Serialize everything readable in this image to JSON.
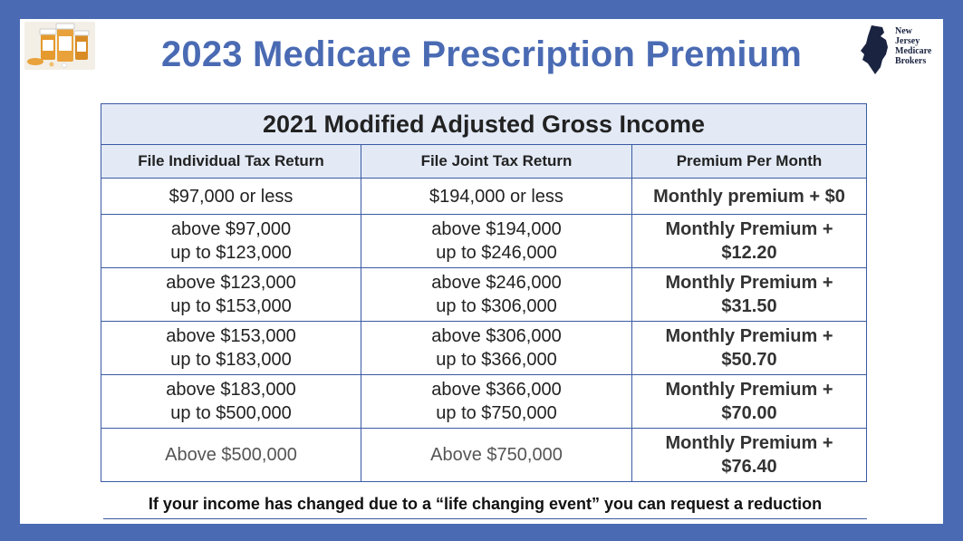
{
  "title": "2023 Medicare Prescription Premium",
  "logo": {
    "lines": [
      "New",
      "Jersey",
      "Medicare",
      "Brokers"
    ],
    "state_color": "#1a2340"
  },
  "photo": {
    "icon": "pill-bottles-image"
  },
  "table": {
    "heading": "2021 Modified Adjusted Gross Income",
    "columns": [
      "File Individual Tax Return",
      "File Joint Tax Return",
      "Premium Per Month"
    ],
    "rows": [
      {
        "individual": [
          "$97,000 or less"
        ],
        "joint": [
          "$194,000 or less"
        ],
        "premium": [
          "Monthly premium + $0"
        ]
      },
      {
        "individual": [
          "above $97,000",
          "up to $123,000"
        ],
        "joint": [
          "above $194,000",
          "up to $246,000"
        ],
        "premium": [
          "Monthly Premium +",
          "$12.20"
        ]
      },
      {
        "individual": [
          "above $123,000",
          "up to $153,000"
        ],
        "joint": [
          "above $246,000",
          "up to $306,000"
        ],
        "premium": [
          "Monthly Premium +",
          "$31.50"
        ]
      },
      {
        "individual": [
          "above $153,000",
          "up to $183,000"
        ],
        "joint": [
          "above $306,000",
          "up to $366,000"
        ],
        "premium": [
          "Monthly Premium +",
          "$50.70"
        ]
      },
      {
        "individual": [
          "above $183,000",
          "up to $500,000"
        ],
        "joint": [
          "above $366,000",
          "up to $750,000"
        ],
        "premium": [
          "Monthly Premium +",
          "$70.00"
        ]
      },
      {
        "individual": [
          "Above $500,000"
        ],
        "joint": [
          "Above $750,000"
        ],
        "premium": [
          "Monthly Premium +",
          "$76.40"
        ]
      }
    ]
  },
  "footer": "If your income has changed due to a “life changing event” you can request a reduction",
  "colors": {
    "accent": "#4a6bb3",
    "header_fill": "#e3eaf6",
    "border": "#3b5aa3"
  }
}
